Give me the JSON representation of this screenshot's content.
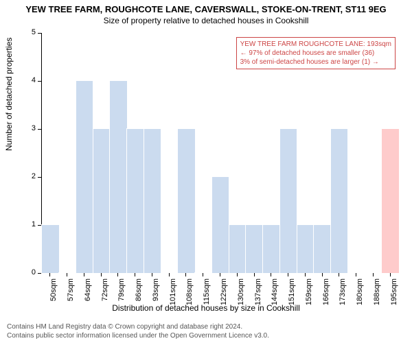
{
  "title": "YEW TREE FARM, ROUGHCOTE LANE, CAVERSWALL, STOKE-ON-TRENT, ST11 9EG",
  "subtitle": "Size of property relative to detached houses in Cookshill",
  "y_axis_label": "Number of detached properties",
  "x_axis_label": "Distribution of detached houses by size in Cookshill",
  "chart": {
    "type": "bar",
    "categories": [
      "50sqm",
      "57sqm",
      "64sqm",
      "72sqm",
      "79sqm",
      "86sqm",
      "93sqm",
      "101sqm",
      "108sqm",
      "115sqm",
      "122sqm",
      "130sqm",
      "137sqm",
      "144sqm",
      "151sqm",
      "159sqm",
      "166sqm",
      "173sqm",
      "180sqm",
      "188sqm",
      "195sqm"
    ],
    "values": [
      1,
      0,
      4,
      3,
      4,
      3,
      3,
      0,
      3,
      0,
      2,
      1,
      1,
      1,
      3,
      1,
      1,
      3,
      0,
      0,
      3
    ],
    "highlight_index": 20,
    "bar_color": "#cbdbef",
    "bar_border": "#ffffff",
    "highlight_color": "#fecbcb",
    "ylim": [
      0,
      5
    ],
    "ytick_step": 1,
    "background_color": "#ffffff",
    "axis_color": "#000000",
    "tick_fontsize": 11,
    "label_fontsize": 12,
    "title_fontsize": 13
  },
  "annotation": {
    "line1": "YEW TREE FARM ROUGHCOTE LANE: 193sqm",
    "line2": "← 97% of detached houses are smaller (36)",
    "line3": "3% of semi-detached houses are larger (1) →",
    "border_color": "#cc4444",
    "text_color": "#cc4444"
  },
  "footer": {
    "line1": "Contains HM Land Registry data © Crown copyright and database right 2024.",
    "line2": "Contains public sector information licensed under the Open Government Licence v3.0."
  }
}
